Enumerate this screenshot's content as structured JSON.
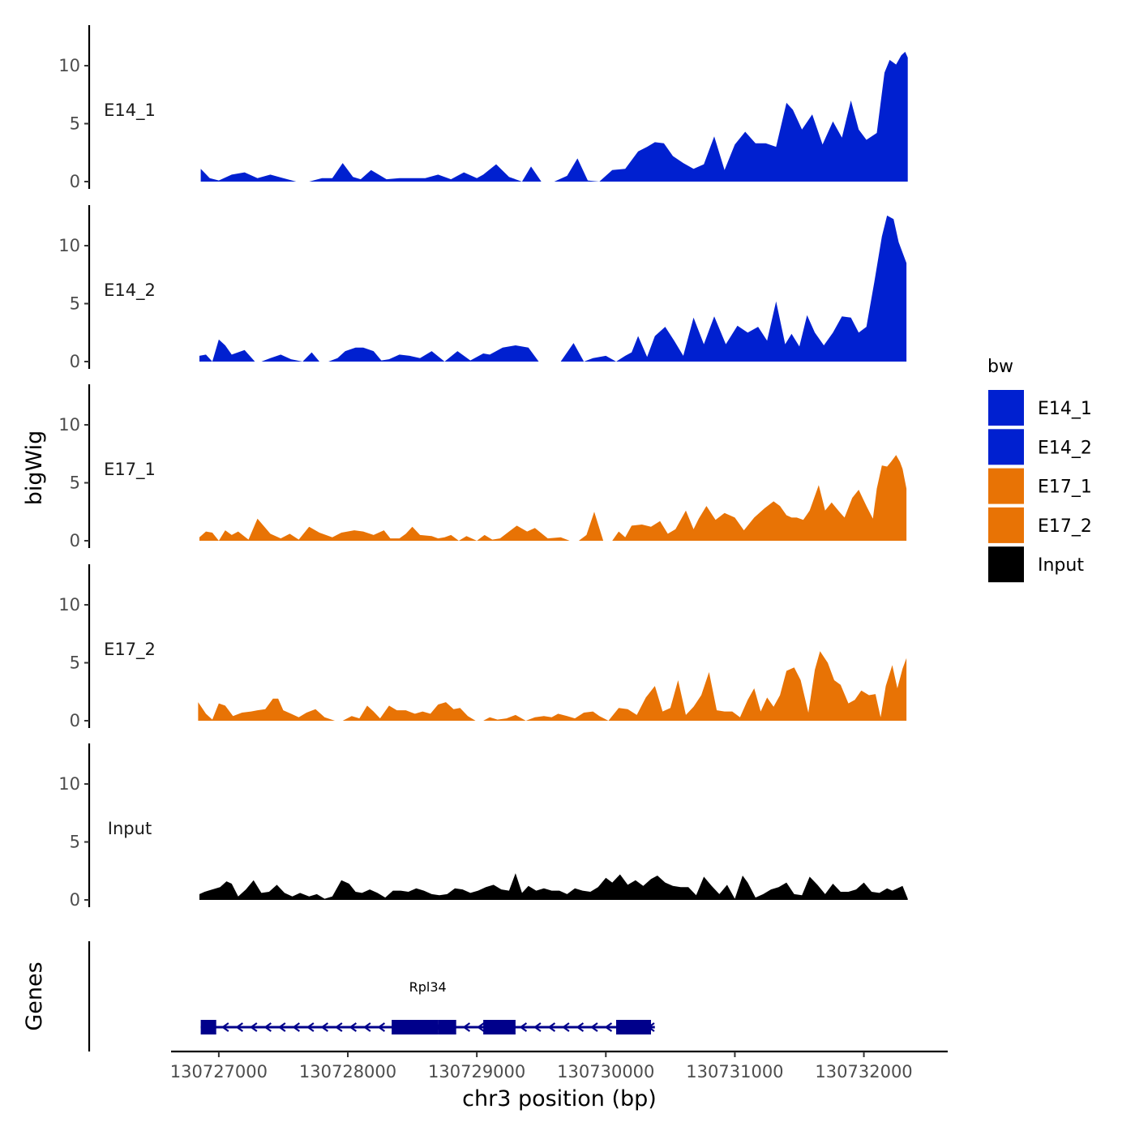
{
  "chart_data": {
    "type": "area",
    "tracks_ylabel": "bigWig",
    "genes_ylabel": "Genes",
    "xlabel": "chr3 position (bp)",
    "xlim": [
      130726630,
      130732650
    ],
    "x_ticks": [
      130727000,
      130728000,
      130729000,
      130730000,
      130731000,
      130732000
    ],
    "x_tick_labels": [
      "130727000",
      "130728000",
      "130729000",
      "130730000",
      "130731000",
      "130732000"
    ],
    "ylim": [
      0,
      13.5
    ],
    "y_ticks": [
      0,
      5,
      10
    ],
    "y_tick_labels": [
      "0",
      "5",
      "10"
    ],
    "legend": {
      "title": "bw",
      "position": "right",
      "entries": [
        {
          "label": "E14_1",
          "color": "#0020D0"
        },
        {
          "label": "E14_2",
          "color": "#0020D0"
        },
        {
          "label": "E17_1",
          "color": "#E87305"
        },
        {
          "label": "E17_2",
          "color": "#E87305"
        },
        {
          "label": "Input",
          "color": "#000000"
        }
      ]
    },
    "series": [
      {
        "name": "E14_1",
        "color": "#0020D0",
        "x": [
          130726860,
          130726930,
          130727000,
          130727100,
          130727200,
          130727300,
          130727400,
          130727500,
          130727600,
          130727700,
          130727800,
          130727880,
          130727960,
          130728040,
          130728100,
          130728180,
          130728300,
          130728400,
          130728500,
          130728600,
          130728700,
          130728800,
          130728900,
          130729000,
          130729050,
          130729150,
          130729250,
          130729350,
          130729420,
          130729500,
          130729600,
          130729700,
          130729780,
          130729860,
          130729950,
          130730050,
          130730150,
          130730250,
          130730320,
          130730380,
          130730450,
          130730520,
          130730600,
          130730680,
          130730760,
          130730840,
          130730920,
          130731000,
          130731080,
          130731160,
          130731240,
          130731320,
          130731400,
          130731450,
          130731520,
          130731600,
          130731680,
          130731760,
          130731830,
          130731900,
          130731960,
          130732020,
          130732100,
          130732160,
          130732200,
          130732250,
          130732290,
          130732320,
          130732340
        ],
        "values": [
          1.1,
          0.3,
          0.1,
          0.6,
          0.8,
          0.3,
          0.6,
          0.3,
          0.0,
          0.0,
          0.3,
          0.3,
          1.6,
          0.4,
          0.2,
          1.0,
          0.2,
          0.3,
          0.3,
          0.3,
          0.6,
          0.2,
          0.8,
          0.3,
          0.6,
          1.5,
          0.4,
          0.0,
          1.3,
          0.0,
          0.0,
          0.5,
          2.0,
          0.1,
          0.0,
          1.0,
          1.1,
          2.6,
          3.0,
          3.4,
          3.3,
          2.2,
          1.6,
          1.1,
          1.5,
          3.9,
          1.0,
          3.2,
          4.3,
          3.3,
          3.3,
          3.0,
          6.8,
          6.2,
          4.5,
          5.8,
          3.2,
          5.2,
          3.8,
          7.0,
          4.5,
          3.6,
          4.2,
          9.4,
          10.5,
          10.1,
          10.9,
          11.2,
          10.7
        ]
      },
      {
        "name": "E14_2",
        "color": "#0020D0",
        "x": [
          130726850,
          130726900,
          130726950,
          130727000,
          130727050,
          130727100,
          130727200,
          130727280,
          130727330,
          130727400,
          130727480,
          130727560,
          130727650,
          130727720,
          130727780,
          130727850,
          130727920,
          130727980,
          130728060,
          130728120,
          130728200,
          130728260,
          130728320,
          130728400,
          130728480,
          130728560,
          130728650,
          130728750,
          130728850,
          130728950,
          130729050,
          130729100,
          130729200,
          130729300,
          130729400,
          130729480,
          130729560,
          130729650,
          130729750,
          130729830,
          130729900,
          130730000,
          130730080,
          130730150,
          130730200,
          130730250,
          130730320,
          130730380,
          130730460,
          130730530,
          130730600,
          130730680,
          130730760,
          130730840,
          130730930,
          130731020,
          130731100,
          130731180,
          130731250,
          130731320,
          130731390,
          130731440,
          130731500,
          130731560,
          130731620,
          130731690,
          130731760,
          130731830,
          130731900,
          130731960,
          130732020,
          130732080,
          130732140,
          130732180,
          130732230,
          130732270,
          130732300,
          130732330
        ],
        "values": [
          0.5,
          0.6,
          0.0,
          1.9,
          1.4,
          0.6,
          1.0,
          0.0,
          0.0,
          0.3,
          0.6,
          0.2,
          0.0,
          0.8,
          0.0,
          0.0,
          0.3,
          0.9,
          1.2,
          1.2,
          0.9,
          0.1,
          0.2,
          0.6,
          0.5,
          0.3,
          0.9,
          0.0,
          0.9,
          0.1,
          0.7,
          0.6,
          1.2,
          1.4,
          1.2,
          0.0,
          0.0,
          0.0,
          1.6,
          0.0,
          0.3,
          0.5,
          0.0,
          0.5,
          0.8,
          2.2,
          0.4,
          2.2,
          3.0,
          1.8,
          0.5,
          3.8,
          1.5,
          3.9,
          1.5,
          3.1,
          2.5,
          3.0,
          1.8,
          5.2,
          1.5,
          2.4,
          1.3,
          4.0,
          2.5,
          1.4,
          2.5,
          3.9,
          3.8,
          2.5,
          3.0,
          6.8,
          10.8,
          12.6,
          12.3,
          10.3,
          9.4,
          8.5
        ]
      },
      {
        "name": "E17_1",
        "color": "#E87305",
        "x": [
          130726850,
          130726900,
          130726950,
          130727000,
          130727050,
          130727100,
          130727150,
          130727230,
          130727300,
          130727400,
          130727480,
          130727550,
          130727620,
          130727700,
          130727780,
          130727880,
          130727950,
          130728050,
          130728120,
          130728200,
          130728280,
          130728330,
          130728400,
          130728450,
          130728500,
          130728560,
          130728650,
          130728700,
          130728750,
          130728800,
          130728860,
          130728920,
          130729000,
          130729060,
          130729120,
          130729180,
          130729250,
          130729310,
          130729390,
          130729450,
          130729550,
          130729650,
          130729720,
          130729790,
          130729850,
          130729910,
          130729980,
          130730050,
          130730100,
          130730150,
          130730200,
          130730280,
          130730350,
          130730420,
          130730480,
          130730540,
          130730620,
          130730680,
          130730720,
          130730780,
          130730850,
          130730920,
          130731000,
          130731070,
          130731150,
          130731230,
          130731300,
          130731350,
          130731400,
          130731440,
          130731480,
          130731530,
          130731580,
          130731650,
          130731700,
          130731750,
          130731810,
          130731850,
          130731910,
          130731960,
          130732020,
          130732070,
          130732100,
          130732140,
          130732180,
          130732210,
          130732250,
          130732280,
          130732300,
          130732330
        ],
        "values": [
          0.3,
          0.8,
          0.7,
          0.0,
          0.9,
          0.5,
          0.8,
          0.1,
          1.9,
          0.6,
          0.2,
          0.6,
          0.1,
          1.2,
          0.7,
          0.3,
          0.7,
          0.9,
          0.8,
          0.5,
          0.9,
          0.2,
          0.2,
          0.6,
          1.2,
          0.5,
          0.4,
          0.2,
          0.3,
          0.5,
          0.0,
          0.4,
          0.0,
          0.5,
          0.1,
          0.2,
          0.8,
          1.3,
          0.8,
          1.1,
          0.2,
          0.3,
          0.0,
          0.0,
          0.5,
          2.5,
          0.0,
          0.0,
          0.8,
          0.3,
          1.3,
          1.4,
          1.2,
          1.7,
          0.6,
          1.0,
          2.6,
          1.0,
          1.9,
          3.0,
          1.8,
          2.4,
          2.0,
          0.9,
          2.0,
          2.8,
          3.4,
          3.0,
          2.2,
          2.0,
          2.0,
          1.8,
          2.6,
          4.8,
          2.6,
          3.3,
          2.5,
          2.0,
          3.7,
          4.4,
          3.0,
          1.9,
          4.5,
          6.5,
          6.4,
          6.8,
          7.4,
          6.8,
          6.2,
          4.5
        ]
      },
      {
        "name": "E17_2",
        "color": "#E87305",
        "x": [
          130726840,
          130726900,
          130726950,
          130727000,
          130727050,
          130727110,
          130727180,
          130727250,
          130727300,
          130727360,
          130727420,
          130727460,
          130727500,
          130727560,
          130727620,
          130727680,
          130727750,
          130727820,
          130727900,
          130727960,
          130728030,
          130728090,
          130728150,
          130728200,
          130728250,
          130728320,
          130728380,
          130728450,
          130728520,
          130728580,
          130728640,
          130728700,
          130728760,
          130728820,
          130728870,
          130728930,
          130728990,
          130729050,
          130729100,
          130729160,
          130729230,
          130729300,
          130729380,
          130729450,
          130729520,
          130729580,
          130729630,
          130729700,
          130729760,
          130729830,
          130729900,
          130729950,
          130730020,
          130730100,
          130730170,
          130730240,
          130730310,
          130730380,
          130730440,
          130730500,
          130730560,
          130730620,
          130730680,
          130730740,
          130730800,
          130730860,
          130730920,
          130730980,
          130731040,
          130731100,
          130731150,
          130731200,
          130731250,
          130731300,
          130731350,
          130731400,
          130731460,
          130731510,
          130731570,
          130731620,
          130731660,
          130731720,
          130731770,
          130731820,
          130731880,
          130731930,
          130731980,
          130732040,
          130732090,
          130732130,
          130732170,
          130732220,
          130732260,
          130732300,
          130732330
        ],
        "values": [
          1.6,
          0.6,
          0.1,
          1.5,
          1.3,
          0.4,
          0.7,
          0.8,
          0.9,
          1.0,
          1.9,
          1.9,
          0.9,
          0.6,
          0.3,
          0.7,
          1.0,
          0.3,
          0.0,
          0.0,
          0.4,
          0.2,
          1.3,
          0.8,
          0.2,
          1.3,
          0.9,
          0.9,
          0.6,
          0.8,
          0.6,
          1.4,
          1.6,
          1.0,
          1.1,
          0.4,
          0.0,
          0.0,
          0.3,
          0.1,
          0.2,
          0.5,
          0.0,
          0.3,
          0.4,
          0.3,
          0.6,
          0.4,
          0.2,
          0.7,
          0.8,
          0.4,
          0.0,
          1.1,
          1.0,
          0.5,
          2.0,
          3.0,
          0.8,
          1.1,
          3.5,
          0.5,
          1.2,
          2.2,
          4.2,
          0.9,
          0.8,
          0.8,
          0.3,
          1.8,
          2.8,
          0.8,
          2.0,
          1.2,
          2.2,
          4.3,
          4.6,
          3.5,
          0.7,
          4.4,
          6.0,
          5.0,
          3.5,
          3.1,
          1.5,
          1.8,
          2.6,
          2.2,
          2.3,
          0.3,
          3.0,
          4.8,
          2.8,
          4.5,
          5.4
        ]
      },
      {
        "name": "Input",
        "color": "#000000",
        "x": [
          130726850,
          130726890,
          130726950,
          130727010,
          130727060,
          130727100,
          130727150,
          130727210,
          130727270,
          130727330,
          130727390,
          130727450,
          130727510,
          130727570,
          130727630,
          130727700,
          130727760,
          130727820,
          130727880,
          130727950,
          130728010,
          130728060,
          130728110,
          130728170,
          130728230,
          130728290,
          130728350,
          130728410,
          130728470,
          130728530,
          130728590,
          130728650,
          130728710,
          130728770,
          130728830,
          130728890,
          130728950,
          130729010,
          130729070,
          130729130,
          130729190,
          130729250,
          130729300,
          130729350,
          130729400,
          130729460,
          130729520,
          130729580,
          130729640,
          130729700,
          130729760,
          130729820,
          130729880,
          130729940,
          130730000,
          130730050,
          130730110,
          130730170,
          130730230,
          130730290,
          130730350,
          130730400,
          130730460,
          130730520,
          130730580,
          130730640,
          130730700,
          130730760,
          130730820,
          130730880,
          130730940,
          130731000,
          130731060,
          130731100,
          130731160,
          130731220,
          130731280,
          130731340,
          130731400,
          130731460,
          130731520,
          130731580,
          130731640,
          130731700,
          130731760,
          130731820,
          130731880,
          130731940,
          130732000,
          130732060,
          130732120,
          130732180,
          130732220,
          130732260,
          130732300,
          130732340
        ],
        "values": [
          0.5,
          0.7,
          0.9,
          1.1,
          1.6,
          1.4,
          0.3,
          0.9,
          1.7,
          0.6,
          0.7,
          1.3,
          0.6,
          0.3,
          0.6,
          0.3,
          0.5,
          0.1,
          0.3,
          1.7,
          1.4,
          0.7,
          0.6,
          0.9,
          0.6,
          0.2,
          0.8,
          0.8,
          0.7,
          1.0,
          0.8,
          0.5,
          0.4,
          0.5,
          1.0,
          0.9,
          0.6,
          0.8,
          1.1,
          1.3,
          0.9,
          0.8,
          2.3,
          0.6,
          1.2,
          0.8,
          1.0,
          0.8,
          0.8,
          0.5,
          1.0,
          0.8,
          0.7,
          1.1,
          1.9,
          1.5,
          2.2,
          1.3,
          1.7,
          1.2,
          1.8,
          2.1,
          1.5,
          1.2,
          1.1,
          1.1,
          0.4,
          2.0,
          1.2,
          0.5,
          1.3,
          0.1,
          2.1,
          1.5,
          0.2,
          0.5,
          0.9,
          1.1,
          1.5,
          0.5,
          0.4,
          2.0,
          1.3,
          0.5,
          1.4,
          0.7,
          0.7,
          0.9,
          1.5,
          0.7,
          0.6,
          1.0,
          0.8,
          1.0,
          1.2,
          0.1
        ]
      }
    ],
    "genes": [
      {
        "name": "Rpl34",
        "strand": "-",
        "color": "#00008B",
        "start": 130726860,
        "end": 130730380,
        "exons": [
          [
            130726860,
            130726980
          ],
          [
            130728340,
            130728700
          ],
          [
            130728700,
            130728840
          ],
          [
            130729050,
            130729300
          ],
          [
            130730080,
            130730350
          ]
        ]
      }
    ]
  }
}
